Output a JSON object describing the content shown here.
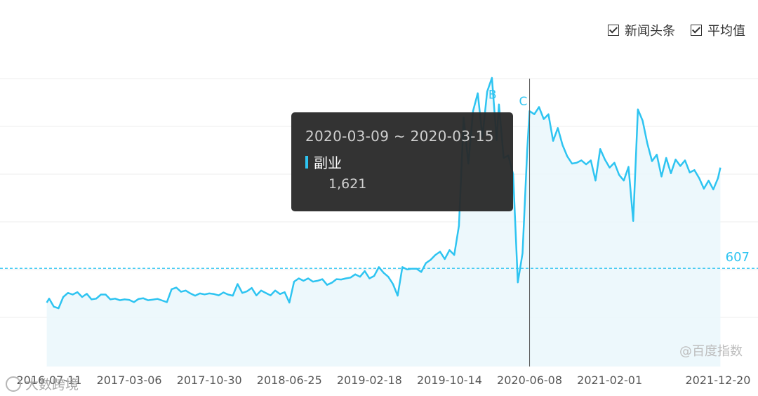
{
  "legend": {
    "items": [
      {
        "label": "新闻头条",
        "checked": true
      },
      {
        "label": "平均值",
        "checked": true
      }
    ]
  },
  "tooltip": {
    "date_range": "2020-03-09 ~ 2020-03-15",
    "series_name": "副业",
    "value_text": "1,621"
  },
  "watermark": "@百度指数",
  "corner_watermark": "大数跨境",
  "colors": {
    "line": "#2ec4f1",
    "area": "#eaf7fc",
    "average": "#2ec4f1",
    "cursor": "#555555"
  },
  "chart_data": {
    "type": "area",
    "title": "",
    "xlabel": "",
    "ylabel": "",
    "x_ticks": [
      "2016-07-11",
      "2017-03-06",
      "2017-10-30",
      "2018-06-25",
      "2019-02-18",
      "2019-10-14",
      "2020-06-08",
      "2021-02-01",
      "2021-12-20"
    ],
    "average": 607,
    "average_label": "607",
    "cursor_date": "2020-06-08",
    "annotations": [
      {
        "letter": "B",
        "date": "2020-03-09"
      },
      {
        "letter": "C",
        "date": "2020-06-08"
      }
    ],
    "series": [
      {
        "name": "副业",
        "values": [
          [
            "2016-07-04",
            395
          ],
          [
            "2016-07-11",
            420
          ],
          [
            "2016-07-25",
            370
          ],
          [
            "2016-08-08",
            360
          ],
          [
            "2016-08-22",
            430
          ],
          [
            "2016-09-05",
            455
          ],
          [
            "2016-09-19",
            445
          ],
          [
            "2016-10-03",
            460
          ],
          [
            "2016-10-17",
            430
          ],
          [
            "2016-10-31",
            450
          ],
          [
            "2016-11-14",
            415
          ],
          [
            "2016-11-28",
            420
          ],
          [
            "2016-12-12",
            445
          ],
          [
            "2016-12-26",
            445
          ],
          [
            "2017-01-09",
            415
          ],
          [
            "2017-01-23",
            420
          ],
          [
            "2017-02-06",
            410
          ],
          [
            "2017-02-20",
            415
          ],
          [
            "2017-03-06",
            412
          ],
          [
            "2017-03-20",
            398
          ],
          [
            "2017-04-03",
            418
          ],
          [
            "2017-04-17",
            422
          ],
          [
            "2017-05-01",
            410
          ],
          [
            "2017-05-15",
            414
          ],
          [
            "2017-05-29",
            418
          ],
          [
            "2017-06-12",
            408
          ],
          [
            "2017-06-26",
            398
          ],
          [
            "2017-07-10",
            478
          ],
          [
            "2017-07-24",
            488
          ],
          [
            "2017-08-07",
            462
          ],
          [
            "2017-08-21",
            470
          ],
          [
            "2017-09-04",
            452
          ],
          [
            "2017-09-18",
            438
          ],
          [
            "2017-10-02",
            452
          ],
          [
            "2017-10-16",
            446
          ],
          [
            "2017-10-30",
            452
          ],
          [
            "2017-11-13",
            448
          ],
          [
            "2017-11-27",
            440
          ],
          [
            "2017-12-11",
            458
          ],
          [
            "2017-12-25",
            445
          ],
          [
            "2018-01-08",
            438
          ],
          [
            "2018-01-22",
            510
          ],
          [
            "2018-02-05",
            455
          ],
          [
            "2018-02-19",
            465
          ],
          [
            "2018-03-05",
            486
          ],
          [
            "2018-03-19",
            440
          ],
          [
            "2018-04-02",
            470
          ],
          [
            "2018-04-16",
            455
          ],
          [
            "2018-04-30",
            440
          ],
          [
            "2018-05-14",
            470
          ],
          [
            "2018-05-28",
            448
          ],
          [
            "2018-06-11",
            460
          ],
          [
            "2018-06-25",
            395
          ],
          [
            "2018-07-09",
            525
          ],
          [
            "2018-07-23",
            545
          ],
          [
            "2018-08-06",
            530
          ],
          [
            "2018-08-20",
            545
          ],
          [
            "2018-09-03",
            525
          ],
          [
            "2018-09-17",
            530
          ],
          [
            "2018-10-01",
            540
          ],
          [
            "2018-10-15",
            505
          ],
          [
            "2018-10-29",
            518
          ],
          [
            "2018-11-12",
            540
          ],
          [
            "2018-11-26",
            538
          ],
          [
            "2018-12-10",
            545
          ],
          [
            "2018-12-24",
            550
          ],
          [
            "2019-01-07",
            570
          ],
          [
            "2019-01-21",
            555
          ],
          [
            "2019-02-04",
            590
          ],
          [
            "2019-02-18",
            545
          ],
          [
            "2019-03-04",
            560
          ],
          [
            "2019-03-18",
            615
          ],
          [
            "2019-04-01",
            580
          ],
          [
            "2019-04-15",
            555
          ],
          [
            "2019-04-29",
            510
          ],
          [
            "2019-05-13",
            438
          ],
          [
            "2019-05-27",
            615
          ],
          [
            "2019-06-10",
            600
          ],
          [
            "2019-06-24",
            605
          ],
          [
            "2019-07-08",
            605
          ],
          [
            "2019-07-22",
            585
          ],
          [
            "2019-08-05",
            640
          ],
          [
            "2019-08-19",
            660
          ],
          [
            "2019-09-02",
            690
          ],
          [
            "2019-09-16",
            710
          ],
          [
            "2019-09-30",
            665
          ],
          [
            "2019-10-14",
            720
          ],
          [
            "2019-10-28",
            690
          ],
          [
            "2019-11-11",
            870
          ],
          [
            "2019-11-25",
            1540
          ],
          [
            "2019-12-09",
            1255
          ],
          [
            "2019-12-23",
            1580
          ],
          [
            "2020-01-06",
            1690
          ],
          [
            "2020-01-20",
            1420
          ],
          [
            "2020-02-03",
            1700
          ],
          [
            "2020-02-17",
            1785
          ],
          [
            "2020-03-02",
            1400
          ],
          [
            "2020-03-09",
            1621
          ],
          [
            "2020-03-23",
            1290
          ],
          [
            "2020-04-06",
            1305
          ],
          [
            "2020-04-20",
            1190
          ],
          [
            "2020-05-04",
            520
          ],
          [
            "2020-05-18",
            700
          ],
          [
            "2020-06-01",
            1340
          ],
          [
            "2020-06-08",
            1580
          ],
          [
            "2020-06-22",
            1560
          ],
          [
            "2020-07-06",
            1605
          ],
          [
            "2020-07-20",
            1530
          ],
          [
            "2020-08-03",
            1560
          ],
          [
            "2020-08-17",
            1395
          ],
          [
            "2020-08-31",
            1475
          ],
          [
            "2020-09-14",
            1370
          ],
          [
            "2020-09-28",
            1300
          ],
          [
            "2020-10-12",
            1255
          ],
          [
            "2020-10-26",
            1260
          ],
          [
            "2020-11-09",
            1275
          ],
          [
            "2020-11-23",
            1250
          ],
          [
            "2020-12-07",
            1275
          ],
          [
            "2020-12-21",
            1150
          ],
          [
            "2021-01-04",
            1345
          ],
          [
            "2021-01-18",
            1280
          ],
          [
            "2021-02-01",
            1230
          ],
          [
            "2021-02-15",
            1260
          ],
          [
            "2021-03-01",
            1185
          ],
          [
            "2021-03-15",
            1150
          ],
          [
            "2021-03-29",
            1235
          ],
          [
            "2021-04-12",
            900
          ],
          [
            "2021-04-26",
            1590
          ],
          [
            "2021-05-10",
            1520
          ],
          [
            "2021-05-24",
            1380
          ],
          [
            "2021-06-07",
            1270
          ],
          [
            "2021-06-21",
            1310
          ],
          [
            "2021-07-05",
            1175
          ],
          [
            "2021-07-19",
            1290
          ],
          [
            "2021-08-02",
            1195
          ],
          [
            "2021-08-16",
            1280
          ],
          [
            "2021-08-30",
            1240
          ],
          [
            "2021-09-13",
            1275
          ],
          [
            "2021-09-27",
            1200
          ],
          [
            "2021-10-11",
            1215
          ],
          [
            "2021-10-25",
            1165
          ],
          [
            "2021-11-08",
            1100
          ],
          [
            "2021-11-22",
            1150
          ],
          [
            "2021-12-06",
            1095
          ],
          [
            "2021-12-20",
            1165
          ],
          [
            "2021-12-27",
            1230
          ]
        ]
      }
    ]
  }
}
